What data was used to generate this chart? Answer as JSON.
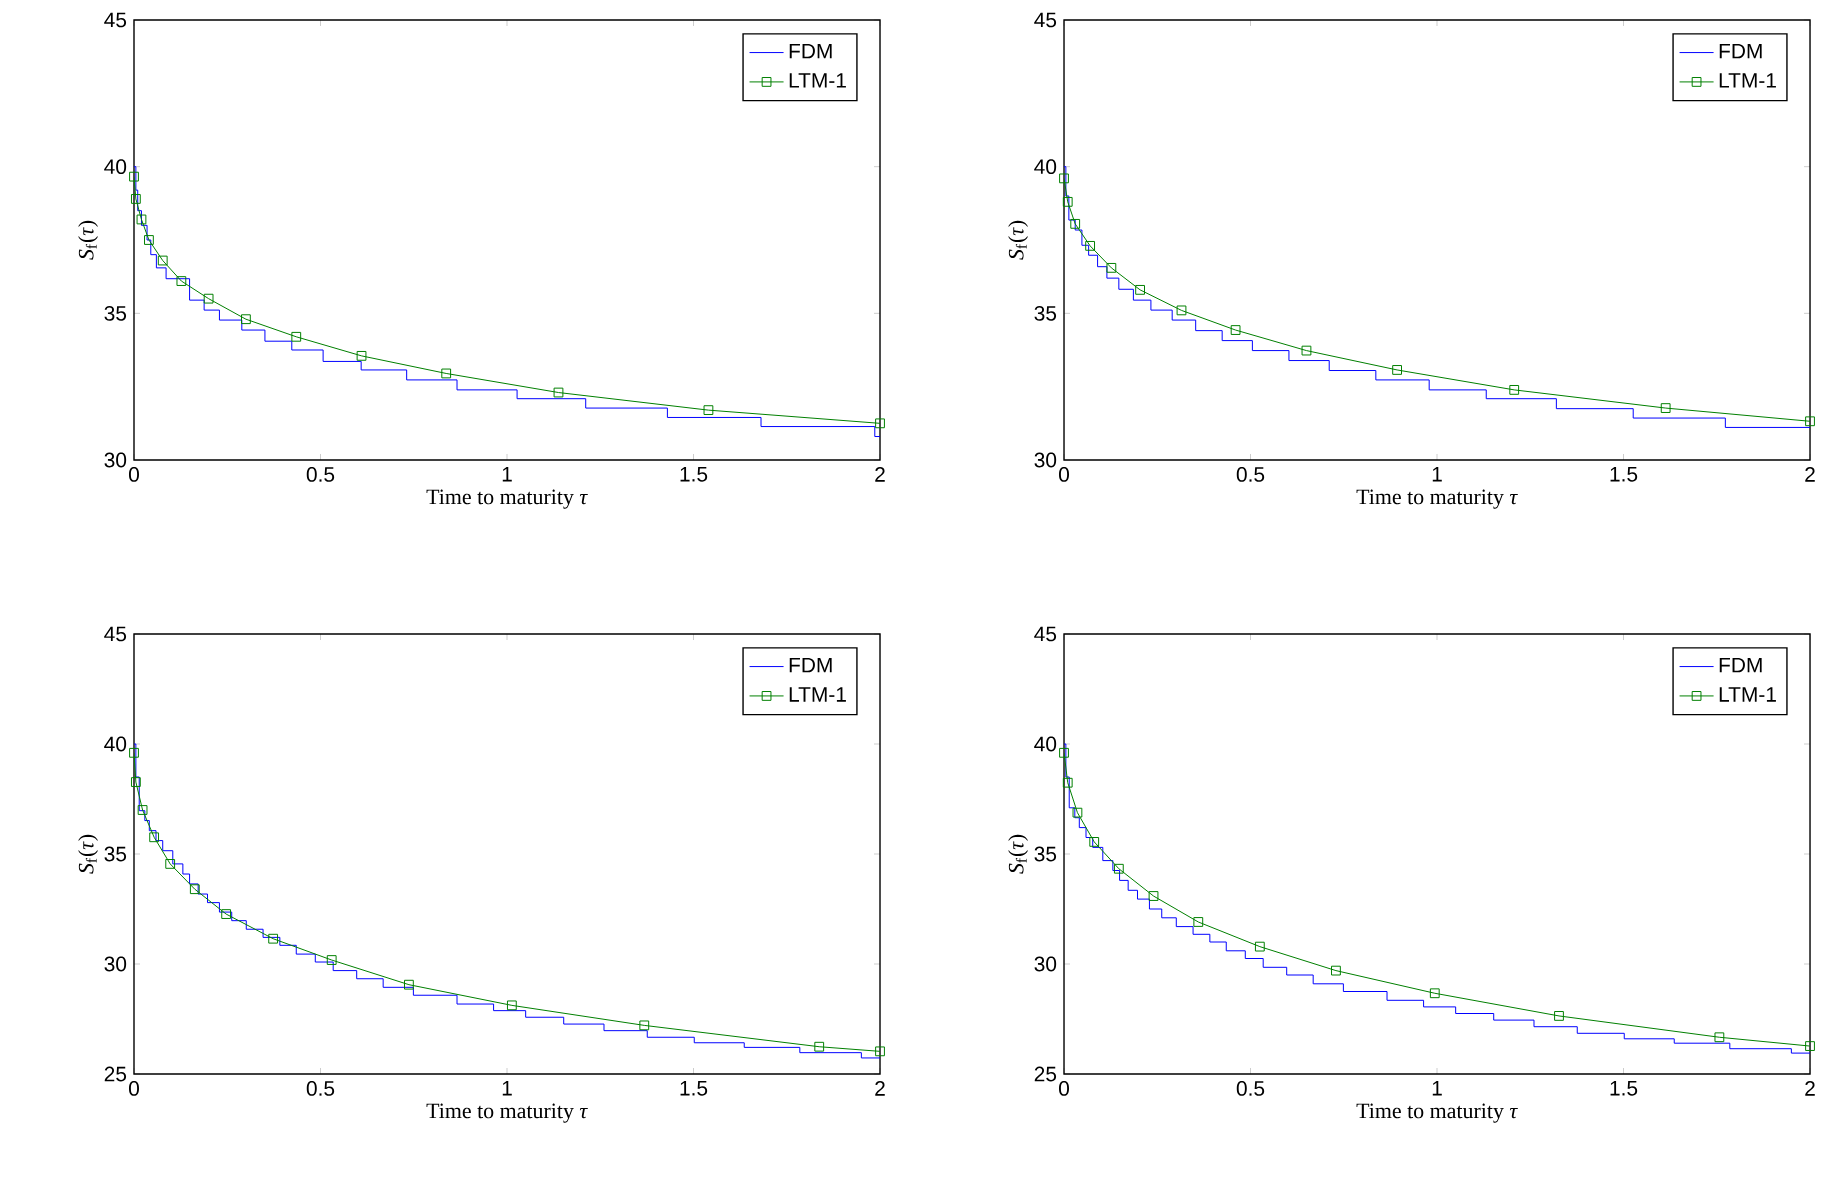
{
  "chart_data": [
    {
      "type": "line",
      "xlabel": "Time to maturity *τ*",
      "ylabel": "*S*$_{f}$(*τ*)",
      "xlim": [
        0,
        2
      ],
      "ylim": [
        30,
        45
      ],
      "xticks": [
        0,
        0.5,
        1,
        1.5,
        2
      ],
      "yticks": [
        30,
        35,
        40,
        45
      ],
      "legend": "top right",
      "series": [
        {
          "name": "FDM",
          "type": "step",
          "color": "#0000ff",
          "marker": "none",
          "x": [
            0,
            0.005,
            0.01,
            0.02,
            0.035,
            0.045,
            0.06,
            0.086,
            0.149,
            0.188,
            0.229,
            0.289,
            0.351,
            0.423,
            0.507,
            0.609,
            0.731,
            0.866,
            1.027,
            1.211,
            1.43,
            1.681,
            1.986,
            2
          ],
          "values": [
            40,
            39.2,
            38.5,
            38.0,
            37.5,
            37.0,
            36.55,
            36.18,
            35.45,
            35.11,
            34.77,
            34.43,
            34.05,
            33.75,
            33.36,
            33.07,
            32.73,
            32.39,
            32.09,
            31.77,
            31.45,
            31.14,
            30.8,
            30.8
          ]
        },
        {
          "name": "LTM-1",
          "color": "#008000",
          "marker": "square",
          "x": [
            0,
            0.005,
            0.02,
            0.04,
            0.077,
            0.127,
            0.2,
            0.3,
            0.435,
            0.61,
            0.837,
            1.138,
            1.54,
            2
          ],
          "values": [
            39.66,
            38.9,
            38.2,
            37.5,
            36.8,
            36.1,
            35.5,
            34.8,
            34.2,
            33.55,
            32.95,
            32.3,
            31.7,
            31.25
          ]
        }
      ]
    },
    {
      "type": "line",
      "xlabel": "Time to maturity *τ*",
      "ylabel": "*S*$_{f}$(*τ*)",
      "xlim": [
        0,
        2
      ],
      "ylim": [
        30,
        45
      ],
      "xticks": [
        0,
        0.5,
        1,
        1.5,
        2
      ],
      "yticks": [
        30,
        35,
        40,
        45
      ],
      "legend": "top right",
      "series": [
        {
          "name": "FDM",
          "type": "step",
          "color": "#0000ff",
          "marker": "none",
          "x": [
            0,
            0.005,
            0.013,
            0.03,
            0.048,
            0.066,
            0.09,
            0.115,
            0.147,
            0.186,
            0.233,
            0.29,
            0.353,
            0.424,
            0.505,
            0.603,
            0.711,
            0.836,
            0.979,
            1.132,
            1.32,
            1.526,
            1.773,
            2
          ],
          "values": [
            40,
            39,
            38.18,
            37.84,
            37.32,
            36.98,
            36.59,
            36.2,
            35.82,
            35.45,
            35.11,
            34.77,
            34.41,
            34.07,
            33.73,
            33.39,
            33.05,
            32.73,
            32.39,
            32.09,
            31.75,
            31.43,
            31.11,
            31.11
          ]
        },
        {
          "name": "LTM-1",
          "color": "#008000",
          "marker": "square",
          "x": [
            0,
            0.01,
            0.03,
            0.07,
            0.127,
            0.204,
            0.315,
            0.46,
            0.65,
            0.893,
            1.207,
            1.613,
            2
          ],
          "values": [
            39.6,
            38.8,
            38.05,
            37.3,
            36.55,
            35.8,
            35.1,
            34.43,
            33.73,
            33.07,
            32.39,
            31.77,
            31.32
          ]
        }
      ]
    },
    {
      "type": "line",
      "xlabel": "Time to maturity *τ*",
      "ylabel": "*S*$_{f}$(*τ*)",
      "xlim": [
        0,
        2
      ],
      "ylim": [
        25,
        45
      ],
      "xticks": [
        0,
        0.5,
        1,
        1.5,
        2
      ],
      "yticks": [
        25,
        30,
        35,
        40,
        45
      ],
      "legend": "top right",
      "series": [
        {
          "name": "FDM",
          "type": "step",
          "color": "#0000ff",
          "marker": "none",
          "x": [
            0,
            0.005,
            0.014,
            0.029,
            0.041,
            0.059,
            0.077,
            0.104,
            0.131,
            0.149,
            0.172,
            0.197,
            0.229,
            0.262,
            0.301,
            0.346,
            0.391,
            0.435,
            0.486,
            0.534,
            0.597,
            0.668,
            0.749,
            0.866,
            0.964,
            1.05,
            1.152,
            1.26,
            1.376,
            1.502,
            1.636,
            1.785,
            1.95,
            2
          ],
          "values": [
            40,
            38.5,
            36.97,
            36.52,
            36.06,
            35.61,
            35.15,
            34.55,
            34.09,
            33.64,
            33.18,
            32.79,
            32.36,
            31.97,
            31.58,
            31.21,
            30.85,
            30.45,
            30.09,
            29.7,
            29.33,
            28.94,
            28.58,
            28.18,
            27.88,
            27.58,
            27.27,
            26.97,
            26.67,
            26.42,
            26.21,
            25.97,
            25.73,
            25.73
          ]
        },
        {
          "name": "LTM-1",
          "color": "#008000",
          "marker": "square",
          "x": [
            0,
            0.005,
            0.023,
            0.054,
            0.097,
            0.163,
            0.247,
            0.373,
            0.53,
            0.737,
            1.013,
            1.368,
            1.837,
            2
          ],
          "values": [
            39.6,
            38.27,
            37.0,
            35.76,
            34.55,
            33.4,
            32.27,
            31.15,
            30.18,
            29.06,
            28.12,
            27.21,
            26.24,
            26.03
          ]
        }
      ]
    },
    {
      "type": "line",
      "xlabel": "Time to maturity *τ*",
      "ylabel": "*S*$_{f}$(*τ*)",
      "xlim": [
        0,
        2
      ],
      "ylim": [
        25,
        45
      ],
      "xticks": [
        0,
        0.5,
        1,
        1.5,
        2
      ],
      "yticks": [
        25,
        30,
        35,
        40,
        45
      ],
      "legend": "top right",
      "series": [
        {
          "name": "FDM",
          "type": "step",
          "color": "#0000ff",
          "marker": "none",
          "x": [
            0,
            0.005,
            0.014,
            0.029,
            0.041,
            0.059,
            0.077,
            0.104,
            0.131,
            0.149,
            0.172,
            0.197,
            0.229,
            0.262,
            0.301,
            0.346,
            0.391,
            0.435,
            0.486,
            0.534,
            0.597,
            0.668,
            0.749,
            0.866,
            0.964,
            1.05,
            1.152,
            1.26,
            1.376,
            1.502,
            1.636,
            1.785,
            1.95,
            2
          ],
          "values": [
            40,
            38.5,
            37.1,
            36.65,
            36.2,
            35.75,
            35.3,
            34.7,
            34.25,
            33.8,
            33.35,
            32.95,
            32.5,
            32.1,
            31.7,
            31.35,
            31.0,
            30.6,
            30.25,
            29.85,
            29.5,
            29.1,
            28.75,
            28.35,
            28.05,
            27.75,
            27.45,
            27.15,
            26.85,
            26.6,
            26.4,
            26.15,
            25.95,
            25.95
          ]
        },
        {
          "name": "LTM-1",
          "color": "#008000",
          "marker": "square",
          "x": [
            0,
            0.01,
            0.036,
            0.081,
            0.147,
            0.24,
            0.36,
            0.525,
            0.729,
            0.994,
            1.327,
            1.757,
            2
          ],
          "values": [
            39.6,
            38.24,
            36.88,
            35.55,
            34.33,
            33.09,
            31.91,
            30.79,
            29.7,
            28.67,
            27.64,
            26.67,
            26.27
          ]
        }
      ]
    }
  ]
}
